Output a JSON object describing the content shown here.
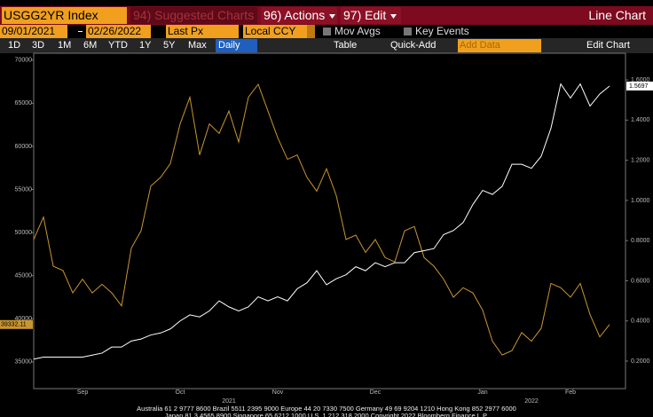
{
  "toolbar": {
    "security": "USGG2YR Index",
    "suggested": "94) Suggested Charts",
    "actions": "96) Actions",
    "edit": "97) Edit",
    "chart_type": "Line Chart"
  },
  "settings": {
    "start": "09/01/2021",
    "end": "02/26/2022",
    "field": "Last Px",
    "currency": "Local CCY",
    "mov_avgs": "Mov Avgs",
    "key_events": "Key Events"
  },
  "range_bar": {
    "periods": [
      "1D",
      "3D",
      "1M",
      "6M",
      "YTD",
      "1Y",
      "5Y",
      "Max"
    ],
    "frequency": "Daily",
    "table": "Table",
    "quick_add": "Quick-Add",
    "add_data": "Add Data",
    "edit_chart": "Edit Chart"
  },
  "chart_data": {
    "type": "line",
    "categories": [
      null,
      null,
      null,
      null,
      null,
      "Sep",
      null,
      null,
      null,
      null,
      null,
      null,
      null,
      null,
      null,
      "Oct",
      null,
      null,
      null,
      null,
      null,
      null,
      null,
      null,
      null,
      "Nov",
      null,
      null,
      null,
      null,
      null,
      null,
      null,
      null,
      null,
      "Dec",
      null,
      null,
      null,
      null,
      null,
      null,
      null,
      null,
      null,
      null,
      "Jan",
      null,
      null,
      null,
      null,
      null,
      null,
      null,
      null,
      "Feb",
      null,
      null,
      null,
      null
    ],
    "x_sublabels": [
      null,
      null,
      null,
      null,
      null,
      null,
      null,
      null,
      null,
      null,
      null,
      null,
      null,
      null,
      null,
      null,
      null,
      null,
      null,
      null,
      "2021",
      null,
      null,
      null,
      null,
      null,
      null,
      null,
      null,
      null,
      null,
      null,
      null,
      null,
      null,
      null,
      null,
      null,
      null,
      null,
      null,
      null,
      null,
      null,
      null,
      null,
      null,
      null,
      null,
      null,
      null,
      "2022",
      null,
      null,
      null,
      null,
      null,
      null,
      null,
      null
    ],
    "ylim": [
      31900,
      70800
    ],
    "yticks": [
      35000,
      40000,
      45000,
      50000,
      55000,
      60000,
      65000,
      70000
    ],
    "y2lim": [
      0.063,
      1.733
    ],
    "y2ticks": [
      {
        "value": 0.2,
        "label": "0.2000"
      },
      {
        "value": 0.4,
        "label": "0.4000"
      },
      {
        "value": 0.6,
        "label": "0.6000"
      },
      {
        "value": 0.8,
        "label": "0.8000"
      },
      {
        "value": 1.0,
        "label": "1.0000"
      },
      {
        "value": 1.2,
        "label": "1.2000"
      },
      {
        "value": 1.4,
        "label": "1.4000"
      },
      {
        "value": 1.6,
        "label": "1.6000"
      }
    ],
    "series": [
      {
        "color": "#c8962e",
        "values": [
          49200,
          51800,
          46100,
          45600,
          43000,
          44600,
          43000,
          44000,
          43000,
          41500,
          48200,
          50200,
          55400,
          56400,
          58000,
          62600,
          65700,
          59000,
          62600,
          61500,
          64100,
          60500,
          65700,
          67200,
          64100,
          61000,
          58500,
          59000,
          56400,
          54800,
          57400,
          54300,
          49200,
          49700,
          47700,
          49200,
          47100,
          46600,
          50200,
          50700,
          47100,
          46100,
          44600,
          42500,
          43600,
          43000,
          41000,
          37400,
          35800,
          36300,
          38400,
          37400,
          38900,
          44100,
          43600,
          42500,
          44100,
          40500,
          37900,
          39332.11
        ],
        "value_labels": [
          null,
          null,
          null,
          null,
          null,
          null,
          null,
          null,
          null,
          null,
          null,
          null,
          null,
          null,
          null,
          null,
          null,
          null,
          null,
          null,
          null,
          null,
          null,
          null,
          null,
          null,
          null,
          null,
          null,
          null,
          null,
          null,
          null,
          null,
          null,
          null,
          null,
          null,
          null,
          null,
          null,
          null,
          null,
          null,
          null,
          null,
          null,
          null,
          null,
          null,
          null,
          null,
          null,
          null,
          null,
          null,
          null,
          null,
          null,
          "39332.11"
        ]
      },
      {
        "color": "#ffffff",
        "axis": "y2",
        "values": [
          0.21,
          0.22,
          0.22,
          0.22,
          0.22,
          0.22,
          0.23,
          0.24,
          0.27,
          0.27,
          0.3,
          0.31,
          0.33,
          0.34,
          0.36,
          0.4,
          0.43,
          0.42,
          0.45,
          0.5,
          0.47,
          0.45,
          0.47,
          0.52,
          0.5,
          0.52,
          0.5,
          0.56,
          0.59,
          0.65,
          0.58,
          0.61,
          0.63,
          0.67,
          0.65,
          0.69,
          0.67,
          0.69,
          0.69,
          0.74,
          0.75,
          0.76,
          0.83,
          0.85,
          0.89,
          0.98,
          1.05,
          1.03,
          1.07,
          1.18,
          1.18,
          1.16,
          1.22,
          1.36,
          1.58,
          1.51,
          1.58,
          1.47,
          1.53,
          1.5697
        ],
        "value_labels": [
          null,
          null,
          null,
          null,
          null,
          null,
          null,
          null,
          null,
          null,
          null,
          null,
          null,
          null,
          null,
          null,
          null,
          null,
          null,
          null,
          null,
          null,
          null,
          null,
          null,
          null,
          null,
          null,
          null,
          null,
          null,
          null,
          null,
          null,
          null,
          null,
          null,
          null,
          null,
          null,
          null,
          null,
          null,
          null,
          null,
          null,
          null,
          null,
          null,
          null,
          null,
          null,
          null,
          null,
          null,
          null,
          null,
          null,
          null,
          "1.5697"
        ]
      }
    ]
  },
  "footer": [
    "Australia 61 2 9777 8600 Brazil 5511 2395 9000 Europe 44 20 7330 7500 Germany 49 69 9204 1210 Hong Kong 852 2977 6000",
    "Japan 81 3 4565 8900 Singapore 65 6212 1000 U.S. 1 212 318 2000 Copyright 2022 Bloomberg Finance L.P."
  ]
}
